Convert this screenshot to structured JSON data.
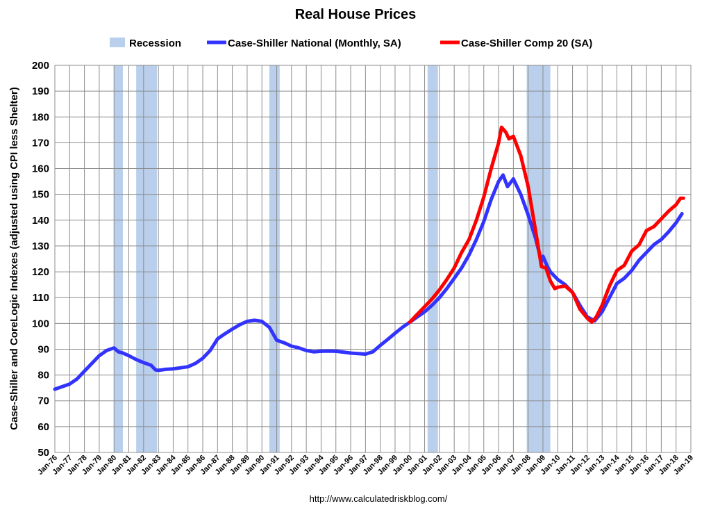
{
  "chart_data": {
    "type": "line",
    "title": "Real House Prices",
    "ylabel": "Case-Shiller and CoreLogic Indexes (adjusted using CPI less Shelter)",
    "xlabel": "",
    "source": "http://www.calculatedriskblog.com/",
    "ylim": [
      50,
      200
    ],
    "yticks": [
      50,
      60,
      70,
      80,
      90,
      100,
      110,
      120,
      130,
      140,
      150,
      160,
      170,
      180,
      190,
      200
    ],
    "xlim": [
      1976,
      2019
    ],
    "xtick_labels": [
      "Jan-76",
      "Jan-77",
      "Jan-78",
      "Jan-79",
      "Jan-80",
      "Jan-81",
      "Jan-82",
      "Jan-83",
      "Jan-84",
      "Jan-85",
      "Jan-86",
      "Jan-87",
      "Jan-88",
      "Jan-89",
      "Jan-90",
      "Jan-91",
      "Jan-92",
      "Jan-93",
      "Jan-94",
      "Jan-95",
      "Jan-96",
      "Jan-97",
      "Jan-98",
      "Jan-99",
      "Jan-00",
      "Jan-01",
      "Jan-02",
      "Jan-03",
      "Jan-04",
      "Jan-05",
      "Jan-06",
      "Jan-07",
      "Jan-08",
      "Jan-09",
      "Jan-10",
      "Jan-11",
      "Jan-12",
      "Jan-13",
      "Jan-14",
      "Jan-15",
      "Jan-16",
      "Jan-17",
      "Jan-18",
      "Jan-19"
    ],
    "grid": true,
    "legend_position": "top",
    "recessions": {
      "name": "Recession",
      "color": "#b9cfeb",
      "periods": [
        [
          1980.0,
          1980.6
        ],
        [
          1981.5,
          1982.9
        ],
        [
          1990.5,
          1991.2
        ],
        [
          2001.2,
          2001.9
        ],
        [
          2007.9,
          2009.5
        ]
      ]
    },
    "series": [
      {
        "name": "Case-Shiller National (Monthly, SA)",
        "color": "#3333ff",
        "x": [
          1976.0,
          1976.5,
          1977.0,
          1977.5,
          1978.0,
          1978.5,
          1979.0,
          1979.5,
          1980.0,
          1980.3,
          1980.6,
          1981.0,
          1981.5,
          1982.0,
          1982.5,
          1982.8,
          1983.0,
          1983.5,
          1984.0,
          1984.5,
          1985.0,
          1985.5,
          1986.0,
          1986.5,
          1987.0,
          1987.5,
          1988.0,
          1988.5,
          1989.0,
          1989.5,
          1990.0,
          1990.5,
          1991.0,
          1991.5,
          1992.0,
          1992.5,
          1993.0,
          1993.5,
          1994.0,
          1994.5,
          1995.0,
          1995.5,
          1996.0,
          1996.5,
          1997.0,
          1997.5,
          1998.0,
          1998.5,
          1999.0,
          1999.5,
          2000.0,
          2000.5,
          2001.0,
          2001.5,
          2002.0,
          2002.5,
          2003.0,
          2003.5,
          2004.0,
          2004.5,
          2005.0,
          2005.5,
          2006.0,
          2006.3,
          2006.6,
          2007.0,
          2007.5,
          2008.0,
          2008.5,
          2008.9,
          2009.0,
          2009.3,
          2009.5,
          2010.0,
          2010.5,
          2011.0,
          2011.5,
          2012.0,
          2012.5,
          2013.0,
          2013.5,
          2014.0,
          2014.5,
          2015.0,
          2015.5,
          2016.0,
          2016.5,
          2017.0,
          2017.5,
          2018.0,
          2018.4
        ],
        "values": [
          74.5,
          75.5,
          76.5,
          78.5,
          81.5,
          84.5,
          87.5,
          89.5,
          90.5,
          89.0,
          88.5,
          87.5,
          86.0,
          84.8,
          83.8,
          82.0,
          81.8,
          82.2,
          82.4,
          82.8,
          83.2,
          84.5,
          86.5,
          89.5,
          94.0,
          96.0,
          97.8,
          99.5,
          100.8,
          101.2,
          100.8,
          98.5,
          93.5,
          92.5,
          91.2,
          90.5,
          89.5,
          89.0,
          89.2,
          89.3,
          89.2,
          88.9,
          88.5,
          88.3,
          88.1,
          89.0,
          91.5,
          93.8,
          96.2,
          98.5,
          100.5,
          102.5,
          104.5,
          107.0,
          110.0,
          113.5,
          117.5,
          121.5,
          126.5,
          132.5,
          139.5,
          148.0,
          155.0,
          157.5,
          153.0,
          156.0,
          150.0,
          142.0,
          133.0,
          124.0,
          126.0,
          122.0,
          120.0,
          117.0,
          115.0,
          112.0,
          107.0,
          102.5,
          101.0,
          104.5,
          110.0,
          115.5,
          117.5,
          120.5,
          124.5,
          127.5,
          130.5,
          132.5,
          135.5,
          139.0,
          142.5
        ]
      },
      {
        "name": "Case-Shiller Comp 20  (SA)",
        "color": "#ff0000",
        "x": [
          2000.0,
          2000.5,
          2001.0,
          2001.5,
          2002.0,
          2002.5,
          2003.0,
          2003.5,
          2004.0,
          2004.5,
          2005.0,
          2005.5,
          2006.0,
          2006.2,
          2006.5,
          2006.7,
          2007.0,
          2007.5,
          2008.0,
          2008.5,
          2008.9,
          2009.2,
          2009.5,
          2009.8,
          2010.0,
          2010.5,
          2011.0,
          2011.5,
          2012.0,
          2012.3,
          2012.6,
          2013.0,
          2013.5,
          2014.0,
          2014.5,
          2015.0,
          2015.5,
          2016.0,
          2016.5,
          2017.0,
          2017.5,
          2018.0,
          2018.3,
          2018.5
        ],
        "values": [
          100.5,
          103.5,
          106.5,
          109.5,
          113.0,
          117.0,
          121.5,
          127.5,
          132.5,
          140.0,
          149.0,
          160.0,
          170.0,
          176.0,
          174.0,
          171.5,
          172.5,
          165.0,
          153.0,
          136.0,
          122.0,
          121.5,
          116.5,
          113.5,
          114.0,
          114.5,
          112.0,
          105.5,
          102.0,
          100.5,
          102.5,
          107.0,
          114.5,
          120.5,
          122.5,
          128.0,
          130.5,
          136.0,
          137.5,
          140.5,
          143.5,
          146.0,
          148.5,
          148.5
        ]
      }
    ]
  }
}
